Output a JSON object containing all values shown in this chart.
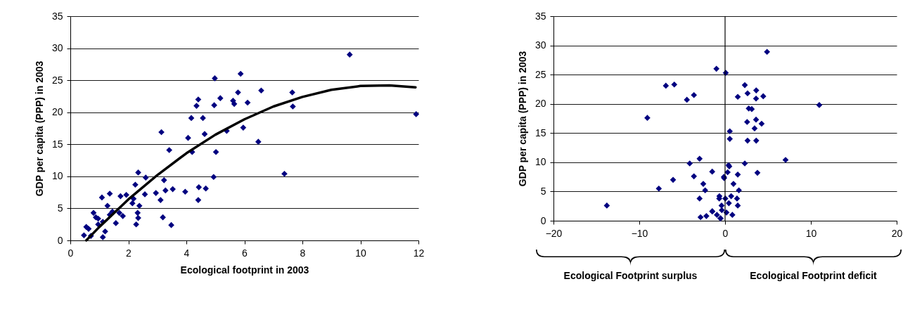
{
  "chart_data": [
    {
      "type": "scatter",
      "xlabel": "Ecological footprint in 2003",
      "ylabel": "GDP per capita (PPP) in 2003",
      "xlim": [
        0,
        12
      ],
      "xticks": [
        0,
        2,
        4,
        6,
        8,
        10,
        12
      ],
      "ylim": [
        0,
        35
      ],
      "yticks": [
        0,
        5,
        10,
        15,
        20,
        25,
        30,
        35
      ],
      "grid": "y",
      "marker": "diamond",
      "series": [
        {
          "color": "#000080",
          "x": [
            4.98,
            5.87,
            6.58,
            5.78,
            5.17,
            4.41,
            4.35,
            4.96,
            5.61,
            5.65,
            6.11,
            4.17,
            4.57,
            3.14,
            4.63,
            5.39,
            5.96,
            4.06,
            6.48,
            3.41,
            4.2,
            5.02,
            2.34,
            2.6,
            4.94,
            3.23,
            2.24,
            3.28,
            3.53,
            2.95,
            3.96,
            4.43,
            4.67,
            2.57,
            1.93,
            1.73,
            1.36,
            1.09,
            3.11,
            4.41,
            2.18,
            2.14,
            2.38,
            2.32,
            2.34,
            2.27,
            3.19,
            3.48,
            1.81,
            1.57,
            1.45,
            1.28,
            0.8,
            0.96,
            0.55,
            0.47,
            0.71,
            1.12,
            1.2,
            0.96,
            1.36,
            1.69,
            0.63,
            0.88,
            1.12,
            9.63,
            7.65,
            7.67,
            11.92,
            7.38
          ],
          "values": [
            25.3,
            26.0,
            23.4,
            23.1,
            22.2,
            22.0,
            21.0,
            21.1,
            21.8,
            21.3,
            21.5,
            19.1,
            19.1,
            16.9,
            16.6,
            17.1,
            17.6,
            16.0,
            15.4,
            14.1,
            13.8,
            13.8,
            10.6,
            9.8,
            9.9,
            9.4,
            8.7,
            7.8,
            8.0,
            7.4,
            7.6,
            8.3,
            8.1,
            7.2,
            7.1,
            6.9,
            7.3,
            6.7,
            6.3,
            6.3,
            6.5,
            5.8,
            5.4,
            4.3,
            3.5,
            2.5,
            3.6,
            2.4,
            3.8,
            2.7,
            4.5,
            5.4,
            4.3,
            3.4,
            2.1,
            0.8,
            0.7,
            0.5,
            1.4,
            2.5,
            4.0,
            4.3,
            1.8,
            3.6,
            2.9,
            29.0,
            23.1,
            20.9,
            19.7,
            10.4
          ]
        },
        {
          "type": "line",
          "color": "#000000",
          "marker": "none",
          "x": [
            0.55,
            1,
            2,
            3,
            4,
            5,
            6,
            7,
            8,
            9,
            10,
            11,
            11.9
          ],
          "values": [
            0,
            2.1,
            6.4,
            10.2,
            13.6,
            16.5,
            18.9,
            20.9,
            22.4,
            23.5,
            24.1,
            24.2,
            23.9
          ]
        }
      ]
    },
    {
      "type": "scatter",
      "ylabel": "GDP per capita (PPP) in 2003",
      "xlim": [
        -20,
        20
      ],
      "xticks": [
        -20,
        -10,
        0,
        10,
        20
      ],
      "ylim": [
        0,
        35
      ],
      "yticks": [
        0,
        5,
        10,
        15,
        20,
        25,
        30,
        35
      ],
      "grid": "y",
      "marker": "diamond",
      "annotations": [
        "Ecological Footprint surplus",
        "Ecological Footprint deficit"
      ],
      "ref_lines": [
        {
          "axis": "x",
          "value": 0,
          "color": "#000000"
        }
      ],
      "series": [
        {
          "color": "#000080",
          "x": [
            -13.78,
            -9.06,
            -6.9,
            -5.92,
            -4.45,
            -3.63,
            -1.01,
            0.08,
            -7.72,
            -6.06,
            -4.12,
            -2.97,
            -3.63,
            -1.5,
            -2.54,
            -2.32,
            -2.97,
            -2.86,
            -2.18,
            -1.5,
            -0.95,
            -0.55,
            -0.41,
            -0.68,
            -0.14,
            0.41,
            0.55,
            0.55,
            4.89,
            2.3,
            3.63,
            2.62,
            1.48,
            3.61,
            4.45,
            10.98,
            2.76,
            3.11,
            2.57,
            3.61,
            4.26,
            3.44,
            2.62,
            3.63,
            7.05,
            2.3,
            3.77,
            0.49,
            -0.11,
            0.98,
            1.48,
            1.61,
            -0.66,
            0.71,
            1.39,
            1.48,
            0.44,
            -0.38,
            -1.48,
            0.85,
            -0.52,
            0.16,
            0.03,
            0.3
          ],
          "values": [
            2.6,
            17.6,
            23.1,
            23.3,
            20.7,
            21.5,
            26.0,
            25.3,
            5.5,
            7.0,
            9.8,
            10.6,
            7.6,
            8.4,
            6.3,
            5.2,
            3.8,
            0.6,
            0.8,
            1.6,
            1.0,
            0.4,
            2.6,
            3.8,
            7.5,
            9.5,
            15.3,
            14.0,
            28.9,
            23.2,
            22.3,
            21.8,
            21.2,
            20.9,
            21.3,
            19.8,
            19.2,
            19.1,
            16.9,
            17.3,
            16.6,
            15.8,
            13.7,
            13.7,
            10.4,
            9.8,
            8.2,
            9.3,
            7.3,
            6.3,
            7.9,
            5.2,
            4.2,
            4.2,
            3.8,
            2.6,
            3.0,
            1.8,
            1.6,
            1.0,
            0.4,
            1.4,
            3.8,
            8.3
          ]
        }
      ]
    }
  ]
}
